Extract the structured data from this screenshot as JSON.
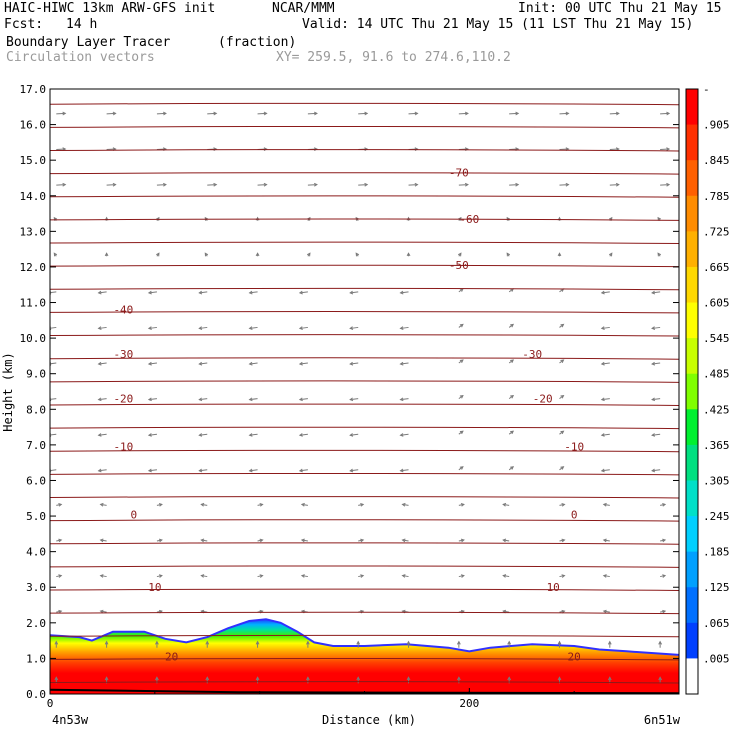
{
  "header": {
    "model": "HAIC-HIWC 13km ARW-GFS init",
    "org": "NCAR/MMM",
    "init": "Init: 00 UTC Thu 21 May 15",
    "fcst_label": "Fcst:",
    "fcst_value": "14 h",
    "valid": "Valid: 14 UTC Thu 21 May 15 (11 LST Thu 21 May 15)",
    "field_name": "Boundary Layer Tracer",
    "field_units": "(fraction)",
    "vectors": "Circulation vectors",
    "xy": "XY= 259.5, 91.6 to 274.6,110.2"
  },
  "chart_data": {
    "type": "heatmap",
    "ylabel": "Height (km)",
    "xlabel": "Distance (km)",
    "ylim": [
      0,
      17
    ],
    "xlim": [
      0,
      300
    ],
    "yticks": [
      "0.0",
      "1.0",
      "2.0",
      "3.0",
      "4.0",
      "5.0",
      "6.0",
      "7.0",
      "8.0",
      "9.0",
      "10.0",
      "11.0",
      "12.0",
      "13.0",
      "14.0",
      "15.0",
      "16.0",
      "17.0"
    ],
    "xticks": [
      {
        "value": 0,
        "label": "0"
      },
      {
        "value": 200,
        "label": "200"
      }
    ],
    "x_left_label": "4n53w",
    "x_right_label": "6n51w",
    "tracer_top_km": [
      {
        "x": 0,
        "z": 1.65
      },
      {
        "x": 14,
        "z": 1.6
      },
      {
        "x": 20,
        "z": 1.5
      },
      {
        "x": 30,
        "z": 1.75
      },
      {
        "x": 45,
        "z": 1.75
      },
      {
        "x": 55,
        "z": 1.55
      },
      {
        "x": 65,
        "z": 1.45
      },
      {
        "x": 75,
        "z": 1.6
      },
      {
        "x": 85,
        "z": 1.85
      },
      {
        "x": 95,
        "z": 2.05
      },
      {
        "x": 103,
        "z": 2.1
      },
      {
        "x": 110,
        "z": 2.0
      },
      {
        "x": 118,
        "z": 1.75
      },
      {
        "x": 126,
        "z": 1.45
      },
      {
        "x": 135,
        "z": 1.35
      },
      {
        "x": 150,
        "z": 1.35
      },
      {
        "x": 170,
        "z": 1.4
      },
      {
        "x": 190,
        "z": 1.3
      },
      {
        "x": 200,
        "z": 1.2
      },
      {
        "x": 210,
        "z": 1.3
      },
      {
        "x": 230,
        "z": 1.4
      },
      {
        "x": 250,
        "z": 1.35
      },
      {
        "x": 262,
        "z": 1.25
      },
      {
        "x": 275,
        "z": 1.2
      },
      {
        "x": 300,
        "z": 1.1
      }
    ],
    "temperature_contours_C": [
      {
        "label": "-70",
        "z": 14.65,
        "lx": 195
      },
      {
        "label": "-60",
        "z": 13.35,
        "lx": 200
      },
      {
        "label": "-50",
        "z": 12.05,
        "lx": 195
      },
      {
        "label": "-40",
        "z": 10.8,
        "lx": 35
      },
      {
        "label": "-30",
        "z": 9.55,
        "lx": 35
      },
      {
        "label": "-30",
        "z": 9.55,
        "lx": 230
      },
      {
        "label": "-20",
        "z": 8.3,
        "lx": 35
      },
      {
        "label": "-20",
        "z": 8.3,
        "lx": 235
      },
      {
        "label": "-10",
        "z": 6.95,
        "lx": 35
      },
      {
        "label": "-10",
        "z": 6.95,
        "lx": 250
      },
      {
        "label": "0",
        "z": 5.05,
        "lx": 40
      },
      {
        "label": "0",
        "z": 5.05,
        "lx": 250
      },
      {
        "label": "10",
        "z": 3.0,
        "lx": 50
      },
      {
        "label": "10",
        "z": 3.0,
        "lx": 240
      },
      {
        "label": "20",
        "z": 1.05,
        "lx": 58
      },
      {
        "label": "20",
        "z": 1.05,
        "lx": 250
      }
    ],
    "colorbar": {
      "labels": [
        "-",
        ".905",
        ".845",
        ".785",
        ".725",
        ".665",
        ".605",
        ".545",
        ".485",
        ".425",
        ".365",
        ".305",
        ".245",
        ".185",
        ".125",
        ".065",
        ".005"
      ],
      "colors": [
        "#ff0000",
        "#ff3000",
        "#ff6000",
        "#ff8c00",
        "#ffb000",
        "#ffd800",
        "#ffff00",
        "#c8ff00",
        "#80ff00",
        "#00f030",
        "#00e080",
        "#00e0c8",
        "#00d0ff",
        "#00a0ff",
        "#0070ff",
        "#0040ff",
        "#ffffff"
      ]
    }
  }
}
